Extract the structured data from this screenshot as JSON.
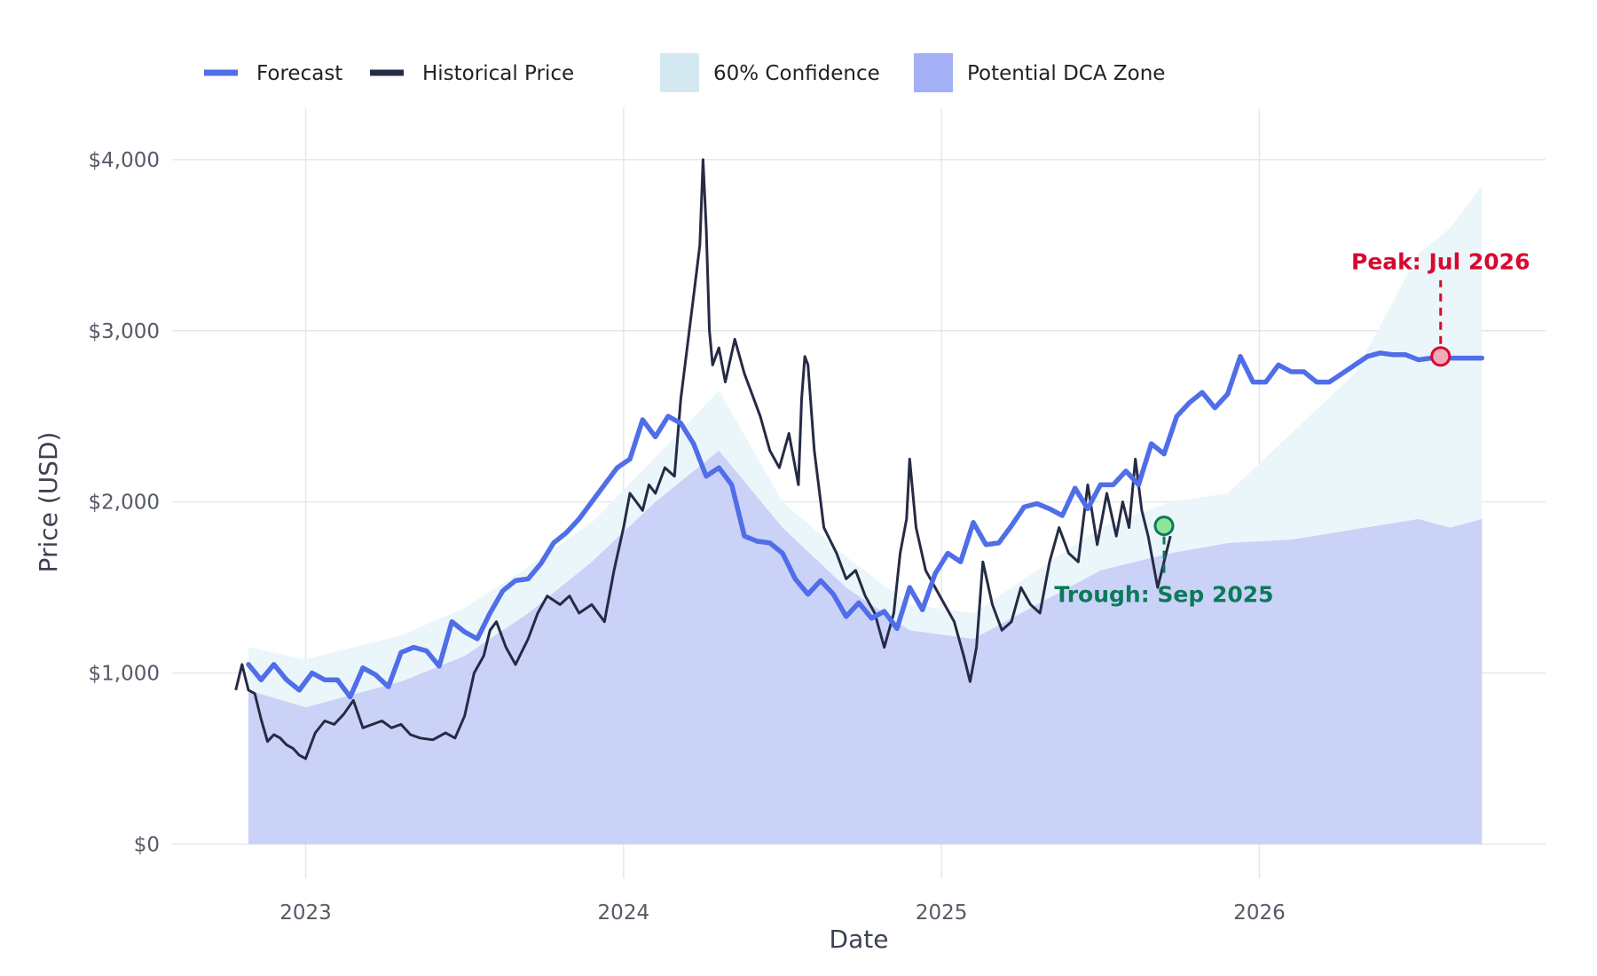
{
  "chart_data": {
    "type": "line",
    "title": "",
    "xlabel": "Date",
    "ylabel": "Price (USD)",
    "xlim": [
      2022.58,
      2026.9
    ],
    "ylim": [
      -200,
      4300
    ],
    "x_ticks": [
      2023,
      2024,
      2025,
      2026
    ],
    "x_tick_labels": [
      "2023",
      "2024",
      "2025",
      "2026"
    ],
    "y_ticks": [
      0,
      1000,
      2000,
      3000,
      4000
    ],
    "y_tick_labels": [
      "$0",
      "$1,000",
      "$2,000",
      "$3,000",
      "$4,000"
    ],
    "grid": true,
    "legend_position": "top",
    "legend": [
      {
        "label": "Forecast",
        "kind": "line",
        "color": "#4f6ee8"
      },
      {
        "label": "Historical Price",
        "kind": "line",
        "color": "#262b45"
      },
      {
        "label": "60% Confidence",
        "kind": "patch",
        "color": "#d4e8f2"
      },
      {
        "label": "Potential DCA Zone",
        "kind": "patch",
        "color": "#a3b0f5"
      }
    ],
    "colors": {
      "forecast": "#4f6ee8",
      "historical": "#262b45",
      "confidence": "#e9f5f9",
      "dca_zone": "#c8d0f8",
      "peak": "#d9082f",
      "trough": "#0b7a5a"
    },
    "series": [
      {
        "name": "Historical Price",
        "x": [
          2022.78,
          2022.8,
          2022.82,
          2022.84,
          2022.86,
          2022.88,
          2022.9,
          2022.92,
          2022.94,
          2022.96,
          2022.98,
          2023.0,
          2023.03,
          2023.06,
          2023.09,
          2023.12,
          2023.15,
          2023.18,
          2023.21,
          2023.24,
          2023.27,
          2023.3,
          2023.33,
          2023.36,
          2023.4,
          2023.44,
          2023.47,
          2023.5,
          2023.53,
          2023.56,
          2023.58,
          2023.6,
          2023.63,
          2023.66,
          2023.7,
          2023.73,
          2023.76,
          2023.8,
          2023.83,
          2023.86,
          2023.9,
          2023.94,
          2023.97,
          2024.0,
          2024.02,
          2024.04,
          2024.06,
          2024.08,
          2024.1,
          2024.13,
          2024.16,
          2024.18,
          2024.2,
          2024.22,
          2024.24,
          2024.25,
          2024.26,
          2024.27,
          2024.28,
          2024.3,
          2024.32,
          2024.35,
          2024.38,
          2024.4,
          2024.43,
          2024.46,
          2024.49,
          2024.52,
          2024.55,
          2024.56,
          2024.57,
          2024.58,
          2024.6,
          2024.63,
          2024.67,
          2024.7,
          2024.73,
          2024.76,
          2024.79,
          2024.82,
          2024.85,
          2024.87,
          2024.89,
          2024.9,
          2024.92,
          2024.95,
          2024.98,
          2025.01,
          2025.04,
          2025.07,
          2025.09,
          2025.11,
          2025.13,
          2025.16,
          2025.19,
          2025.22,
          2025.25,
          2025.28,
          2025.31,
          2025.34,
          2025.37,
          2025.4,
          2025.43,
          2025.46,
          2025.49,
          2025.52,
          2025.55,
          2025.57,
          2025.59,
          2025.61,
          2025.63,
          2025.65,
          2025.68,
          2025.7,
          2025.72
        ],
        "values": [
          900,
          1050,
          900,
          880,
          730,
          600,
          640,
          620,
          580,
          560,
          520,
          500,
          650,
          720,
          700,
          760,
          840,
          680,
          700,
          720,
          680,
          700,
          640,
          620,
          610,
          650,
          620,
          750,
          1000,
          1100,
          1250,
          1300,
          1150,
          1050,
          1200,
          1350,
          1450,
          1400,
          1450,
          1350,
          1400,
          1300,
          1600,
          1850,
          2050,
          2000,
          1950,
          2100,
          2050,
          2200,
          2150,
          2600,
          2900,
          3200,
          3500,
          4000,
          3600,
          3000,
          2800,
          2900,
          2700,
          2950,
          2750,
          2650,
          2500,
          2300,
          2200,
          2400,
          2100,
          2600,
          2850,
          2800,
          2300,
          1850,
          1700,
          1550,
          1600,
          1450,
          1350,
          1150,
          1350,
          1700,
          1900,
          2250,
          1850,
          1600,
          1500,
          1400,
          1300,
          1100,
          950,
          1150,
          1650,
          1400,
          1250,
          1300,
          1500,
          1400,
          1350,
          1650,
          1850,
          1700,
          1650,
          2100,
          1750,
          2050,
          1800,
          2000,
          1850,
          2250,
          1950,
          1800,
          1500,
          1650,
          1800
        ]
      },
      {
        "name": "Forecast",
        "x": [
          2022.82,
          2022.86,
          2022.9,
          2022.94,
          2022.98,
          2023.02,
          2023.06,
          2023.1,
          2023.14,
          2023.18,
          2023.22,
          2023.26,
          2023.3,
          2023.34,
          2023.38,
          2023.42,
          2023.46,
          2023.5,
          2023.54,
          2023.58,
          2023.62,
          2023.66,
          2023.7,
          2023.74,
          2023.78,
          2023.82,
          2023.86,
          2023.9,
          2023.94,
          2023.98,
          2024.02,
          2024.06,
          2024.1,
          2024.14,
          2024.18,
          2024.22,
          2024.26,
          2024.3,
          2024.34,
          2024.38,
          2024.42,
          2024.46,
          2024.5,
          2024.54,
          2024.58,
          2024.62,
          2024.66,
          2024.7,
          2024.74,
          2024.78,
          2024.82,
          2024.86,
          2024.9,
          2024.94,
          2024.98,
          2025.02,
          2025.06,
          2025.1,
          2025.14,
          2025.18,
          2025.22,
          2025.26,
          2025.3,
          2025.34,
          2025.38,
          2025.42,
          2025.46,
          2025.5,
          2025.54,
          2025.58,
          2025.62,
          2025.66,
          2025.7,
          2025.74,
          2025.78,
          2025.82,
          2025.86,
          2025.9,
          2025.94,
          2025.98,
          2026.02,
          2026.06,
          2026.1,
          2026.14,
          2026.18,
          2026.22,
          2026.26,
          2026.3,
          2026.34,
          2026.38,
          2026.42,
          2026.46,
          2026.5,
          2026.54,
          2026.58,
          2026.62,
          2026.66,
          2026.7
        ],
        "values": [
          1050,
          960,
          1050,
          960,
          900,
          1000,
          960,
          960,
          860,
          1030,
          990,
          920,
          1120,
          1150,
          1130,
          1040,
          1300,
          1240,
          1200,
          1350,
          1480,
          1540,
          1550,
          1640,
          1760,
          1820,
          1900,
          2000,
          2100,
          2200,
          2250,
          2480,
          2380,
          2500,
          2460,
          2340,
          2150,
          2200,
          2100,
          1800,
          1770,
          1760,
          1700,
          1550,
          1460,
          1540,
          1460,
          1330,
          1410,
          1320,
          1360,
          1260,
          1500,
          1370,
          1580,
          1700,
          1650,
          1880,
          1750,
          1760,
          1860,
          1970,
          1990,
          1960,
          1920,
          2080,
          1960,
          2100,
          2100,
          2180,
          2100,
          2340,
          2280,
          2500,
          2580,
          2640,
          2550,
          2630,
          2850,
          2700,
          2700,
          2800,
          2760,
          2760,
          2700,
          2700,
          2750,
          2800,
          2850,
          2870,
          2860,
          2860,
          2830,
          2840,
          2840,
          2840,
          2840,
          2840
        ]
      }
    ],
    "confidence_band": {
      "name": "60% Confidence",
      "x": [
        2022.82,
        2023.0,
        2023.3,
        2023.5,
        2023.7,
        2023.9,
        2024.1,
        2024.3,
        2024.5,
        2024.7,
        2024.9,
        2025.1,
        2025.3,
        2025.5,
        2025.72,
        2025.9,
        2026.1,
        2026.3,
        2026.5,
        2026.6,
        2026.7
      ],
      "lower": [
        900,
        800,
        950,
        1100,
        1350,
        1650,
        2000,
        2300,
        1850,
        1500,
        1250,
        1200,
        1400,
        1600,
        1700,
        1760,
        1780,
        1840,
        1900,
        1850,
        1900
      ],
      "upper": [
        1150,
        1080,
        1220,
        1380,
        1620,
        1880,
        2260,
        2650,
        2000,
        1680,
        1400,
        1350,
        1600,
        1850,
        2000,
        2050,
        2400,
        2750,
        3450,
        3600,
        3850
      ]
    },
    "dca_zone": {
      "name": "Potential DCA Zone",
      "x": [
        2022.82,
        2023.0,
        2023.3,
        2023.5,
        2023.7,
        2023.9,
        2024.1,
        2024.3,
        2024.5,
        2024.7,
        2024.9,
        2025.1,
        2025.3,
        2025.5,
        2025.72,
        2025.9,
        2026.1,
        2026.3,
        2026.5,
        2026.6,
        2026.7
      ],
      "upper": [
        900,
        800,
        950,
        1100,
        1350,
        1650,
        2000,
        2300,
        1850,
        1500,
        1250,
        1200,
        1400,
        1600,
        1700,
        1760,
        1780,
        1840,
        1900,
        1850,
        1900
      ]
    },
    "annotations": [
      {
        "label": "Peak: Jul 2026",
        "x": 2026.57,
        "y": 2850,
        "color": "#d9082f"
      },
      {
        "label": "Trough: Sep 2025",
        "x": 2025.7,
        "y": 1860,
        "color": "#0b7a5a"
      }
    ]
  }
}
